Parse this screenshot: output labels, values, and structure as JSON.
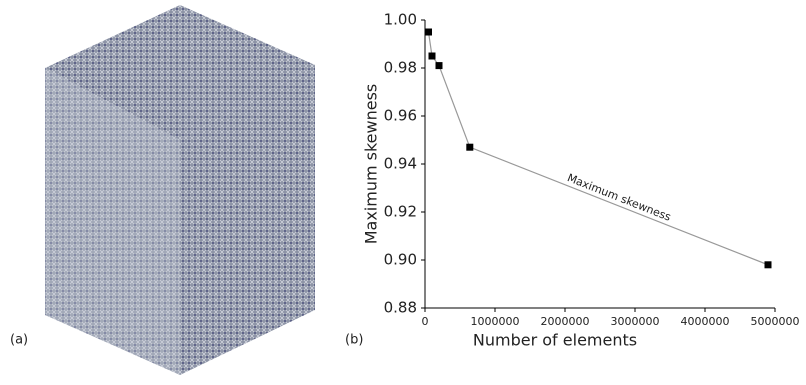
{
  "panels": [
    "(a)",
    "(b)"
  ],
  "chart_data": {
    "type": "line",
    "x_label": "Number of elements",
    "y_label": "Maximum skewness",
    "annotation": "Maximum skewness",
    "x": [
      50000,
      100000,
      200000,
      640000,
      4900000
    ],
    "series": [
      {
        "name": "Maximum skewness",
        "color": "#000000",
        "values": [
          0.995,
          0.985,
          0.981,
          0.947,
          0.898
        ]
      }
    ],
    "xlim": [
      0,
      5000000
    ],
    "xticks": [
      0,
      1000000,
      2000000,
      3000000,
      4000000,
      5000000
    ],
    "ylim": [
      0.88,
      1
    ],
    "yticks": [
      0.88,
      {
        "value": 0.9,
        "label": "0.90"
      },
      0.92,
      0.94,
      0.96,
      0.98,
      {
        "value": 1,
        "label": "1.00"
      }
    ],
    "line_color": "#999999",
    "grid": false
  }
}
